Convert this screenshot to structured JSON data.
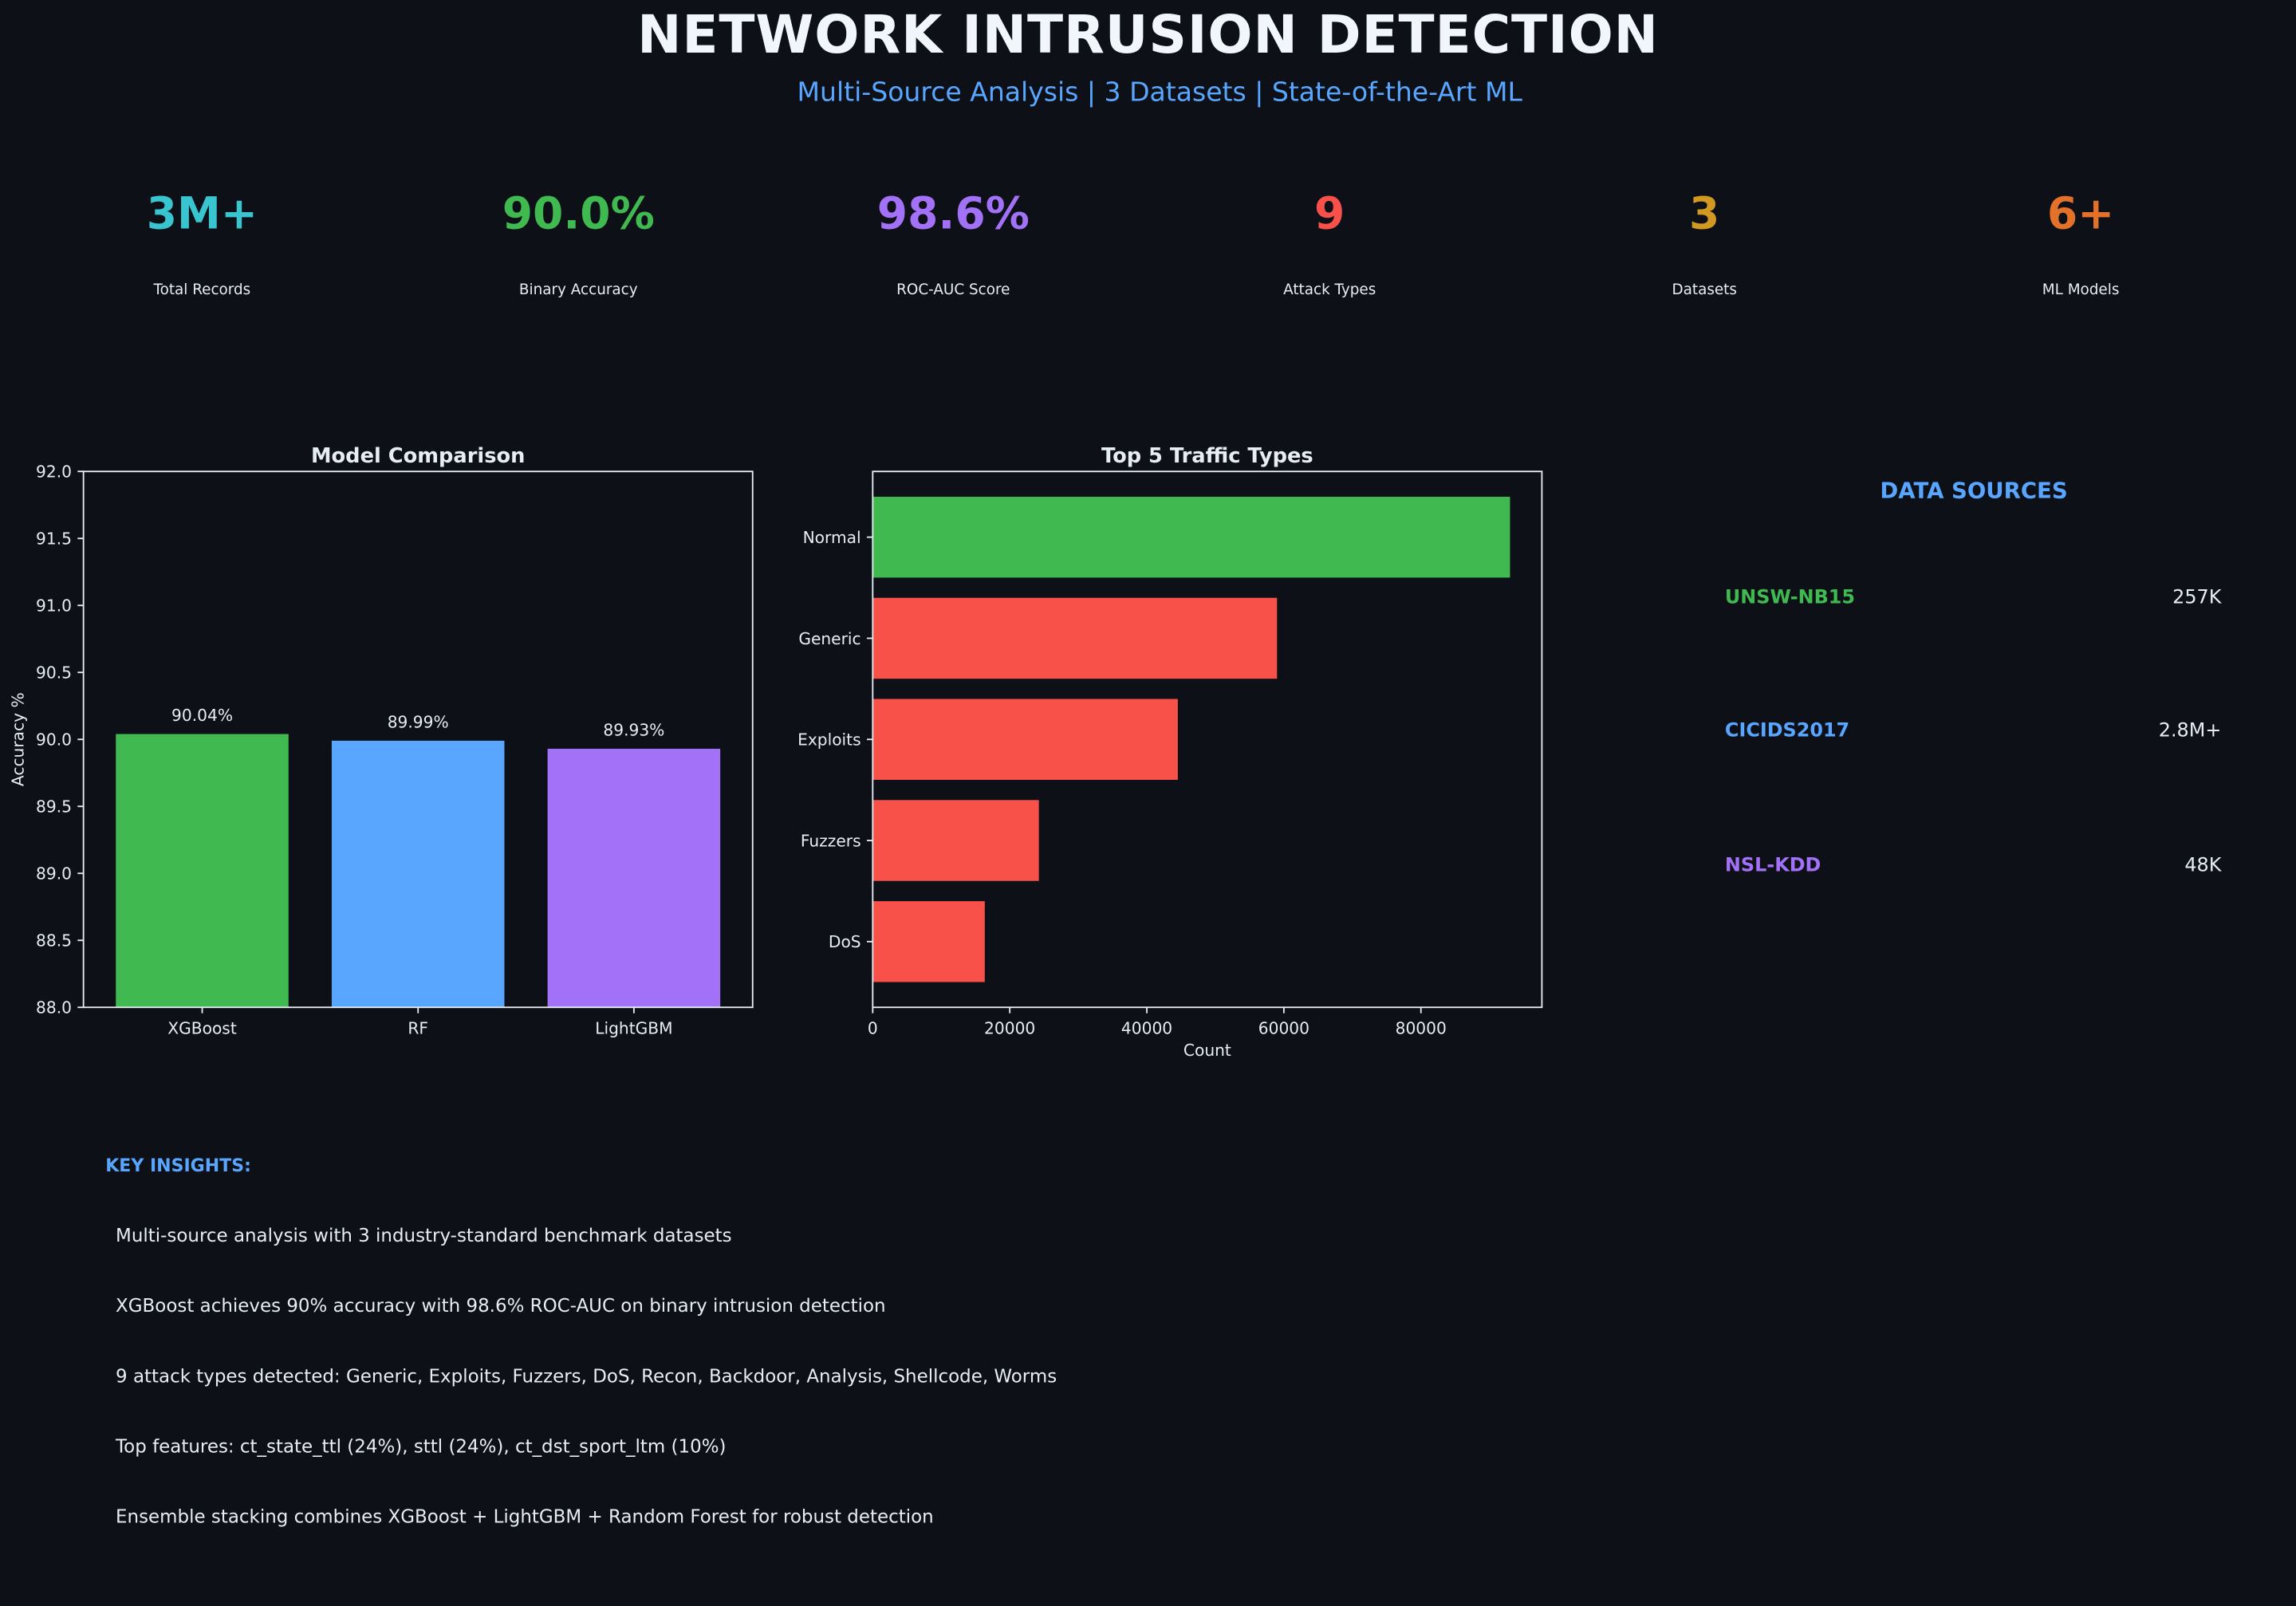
{
  "header": {
    "title": "NETWORK INTRUSION DETECTION",
    "subtitle": "Multi-Source Analysis | 3 Datasets | State-of-the-Art ML"
  },
  "kpis": [
    {
      "value": "3M+",
      "label": "Total Records",
      "color": "#39c5cf"
    },
    {
      "value": "90.0%",
      "label": "Binary Accuracy",
      "color": "#3fb950"
    },
    {
      "value": "98.6%",
      "label": "ROC-AUC Score",
      "color": "#a371f7"
    },
    {
      "value": "9",
      "label": "Attack Types",
      "color": "#f85149"
    },
    {
      "value": "3",
      "label": "Datasets",
      "color": "#d29922"
    },
    {
      "value": "6+",
      "label": "ML Models",
      "color": "#e3712a"
    }
  ],
  "chart_data": [
    {
      "type": "bar",
      "title": "Model Comparison",
      "xlabel": "",
      "ylabel": "Accuracy %",
      "categories": [
        "XGBoost",
        "RF",
        "LightGBM"
      ],
      "values": [
        90.04,
        89.99,
        89.93
      ],
      "data_labels": [
        "90.04%",
        "89.99%",
        "89.93%"
      ],
      "colors": [
        "#3fb950",
        "#58a6ff",
        "#a371f7"
      ],
      "ylim": [
        88.0,
        92.0
      ],
      "yticks": [
        "88.0",
        "88.5",
        "89.0",
        "89.5",
        "90.0",
        "90.5",
        "91.0",
        "91.5",
        "92.0"
      ],
      "grid": false
    },
    {
      "type": "bar",
      "orientation": "horizontal",
      "title": "Top 5 Traffic Types",
      "xlabel": "Count",
      "ylabel": "",
      "categories": [
        "Normal",
        "Generic",
        "Exploits",
        "Fuzzers",
        "DoS"
      ],
      "values": [
        93000,
        59000,
        44525,
        24246,
        16353
      ],
      "colors": [
        "#3fb950",
        "#f85149",
        "#f85149",
        "#f85149",
        "#f85149"
      ],
      "xlim": [
        0,
        97650
      ],
      "xticks": [
        "0",
        "20000",
        "40000",
        "60000",
        "80000"
      ],
      "grid": false
    }
  ],
  "data_sources": {
    "title": "DATA SOURCES",
    "items": [
      {
        "name": "UNSW-NB15",
        "value": "257K",
        "color": "#3fb950"
      },
      {
        "name": "CICIDS2017",
        "value": "2.8M+",
        "color": "#58a6ff"
      },
      {
        "name": "NSL-KDD",
        "value": "48K",
        "color": "#a371f7"
      }
    ]
  },
  "insights": {
    "title": "KEY INSIGHTS:",
    "items": [
      "Multi-source analysis with 3 industry-standard benchmark datasets",
      "XGBoost achieves 90% accuracy with 98.6% ROC-AUC on binary intrusion detection",
      "9 attack types detected: Generic, Exploits, Fuzzers, DoS, Recon, Backdoor, Analysis, Shellcode, Worms",
      "Top features: ct_state_ttl (24%), sttl (24%), ct_dst_sport_ltm (10%)",
      "Ensemble stacking combines XGBoost + LightGBM + Random Forest for robust detection"
    ]
  }
}
